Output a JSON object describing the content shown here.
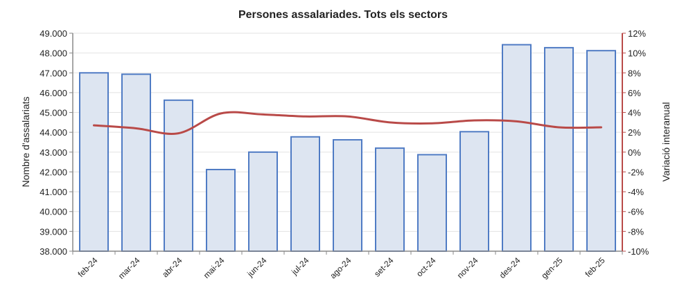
{
  "chart_data": {
    "type": "bar",
    "title": "Persones assalariades. Tots els sectors",
    "xlabel": "",
    "ylabel": "Nombre d'assalariats",
    "y2label": "Variació interanual",
    "categories": [
      "feb-24",
      "mar-24",
      "abr-24",
      "mai-24",
      "jun-24",
      "jul-24",
      "ago-24",
      "set-24",
      "oct-24",
      "nov-24",
      "des-24",
      "gen-25",
      "feb-25"
    ],
    "series": [
      {
        "name": "Nombre d'assalariats",
        "type": "bar",
        "axis": "left",
        "color": "#4f7bc4",
        "fill": "#dde5f1",
        "values": [
          47000,
          46930,
          45620,
          42120,
          43000,
          43770,
          43620,
          43200,
          42870,
          44030,
          48420,
          48270,
          48120
        ]
      },
      {
        "name": "Variació interanual",
        "type": "line",
        "axis": "right",
        "color": "#b94a48",
        "values": [
          2.7,
          2.4,
          1.9,
          3.9,
          3.8,
          3.6,
          3.6,
          3.0,
          2.9,
          3.2,
          3.1,
          2.5,
          2.5
        ]
      }
    ],
    "ylim": [
      38000,
      49000
    ],
    "yticks": [
      "38.000",
      "39.000",
      "40.000",
      "41.000",
      "42.000",
      "43.000",
      "44.000",
      "45.000",
      "46.000",
      "47.000",
      "48.000",
      "49.000"
    ],
    "y2lim": [
      -10,
      12
    ],
    "y2ticks": [
      "-10%",
      "-8%",
      "-6%",
      "-4%",
      "-2%",
      "0%",
      "2%",
      "4%",
      "6%",
      "8%",
      "10%",
      "12%"
    ],
    "grid": true,
    "legend": "none"
  }
}
